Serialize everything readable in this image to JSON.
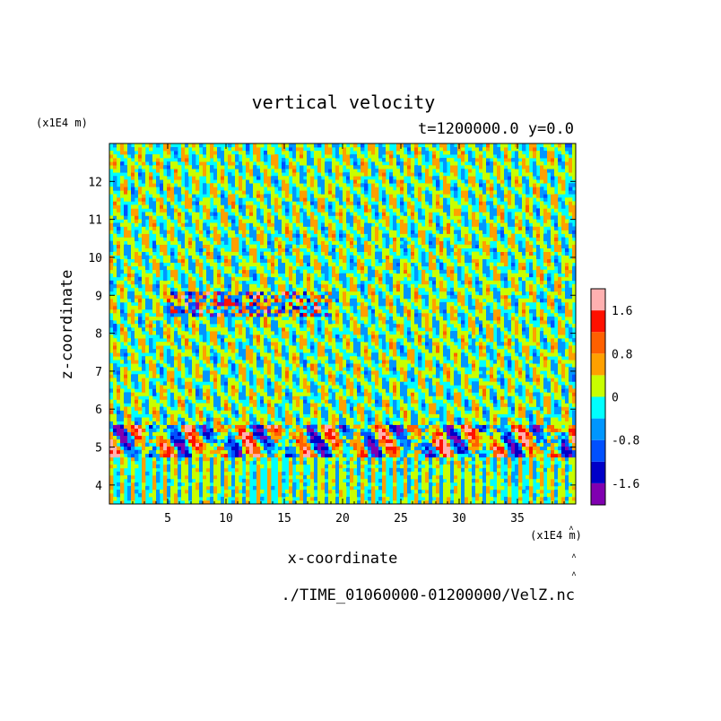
{
  "chart_data": {
    "type": "heatmap",
    "title": "vertical velocity",
    "subtitle": "t=1200000.0 y=0.0",
    "xlabel": "x-coordinate",
    "ylabel": "z-coordinate",
    "x_unit": "(x1E4 m)",
    "y_unit": "(x1E4 m)",
    "source_file": "./TIME_01060000-01200000/VelZ.nc",
    "xlim": [
      0,
      40
    ],
    "ylim": [
      3.5,
      13
    ],
    "x_ticks": [
      5,
      10,
      15,
      20,
      25,
      30,
      35
    ],
    "y_ticks": [
      4,
      5,
      6,
      7,
      8,
      9,
      10,
      11,
      12
    ],
    "colorbar": {
      "levels": [
        -2.0,
        -1.6,
        -1.2,
        -0.8,
        -0.4,
        0,
        0.4,
        0.8,
        1.2,
        1.6,
        2.0
      ],
      "colors": [
        "#8000b0",
        "#0000c8",
        "#0050ff",
        "#0096ff",
        "#00ffff",
        "#c8ff00",
        "#ffa000",
        "#ff6000",
        "#ff1000",
        "#ffb0b0"
      ],
      "tick_labels": [
        "1.6",
        "0.8",
        "0",
        "-0.8",
        "-1.6"
      ],
      "tick_values": [
        1.6,
        0.8,
        0,
        -0.8,
        -1.6
      ]
    },
    "regions": [
      {
        "z_range": [
          3.5,
          4.7
        ],
        "pattern": "mixed cyan/yellow near-zero values, vertical stripes"
      },
      {
        "z_range": [
          4.7,
          5.6
        ],
        "pattern": "strong oscillation band, values roughly -2.0 to 2.0"
      },
      {
        "z_range": [
          5.6,
          13.0
        ],
        "pattern": "wave field of mostly cyan/yellow near-zero values, weak perturbations near z=8.5-9.0"
      }
    ]
  }
}
